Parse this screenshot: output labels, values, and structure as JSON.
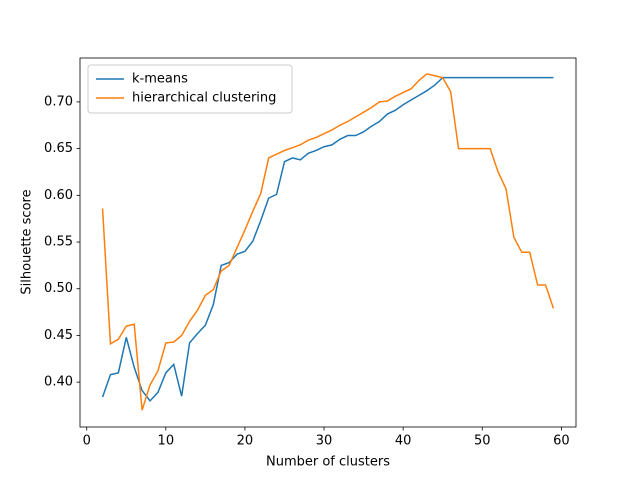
{
  "chart_data": {
    "type": "line",
    "xlabel": "Number of clusters",
    "ylabel": "Silhouette score",
    "x": [
      2,
      3,
      4,
      5,
      6,
      7,
      8,
      9,
      10,
      11,
      12,
      13,
      14,
      15,
      16,
      17,
      18,
      19,
      20,
      21,
      22,
      23,
      24,
      25,
      26,
      27,
      28,
      29,
      30,
      31,
      32,
      33,
      34,
      35,
      36,
      37,
      38,
      39,
      40,
      41,
      42,
      43,
      44,
      45,
      46,
      47,
      48,
      49,
      50,
      51,
      52,
      53,
      54,
      55,
      56,
      57,
      58,
      59
    ],
    "series": [
      {
        "name": "k-means",
        "color": "#1f77b4",
        "values": [
          0.384,
          0.408,
          0.41,
          0.448,
          0.416,
          0.391,
          0.38,
          0.389,
          0.41,
          0.419,
          0.385,
          0.442,
          0.452,
          0.461,
          0.483,
          0.525,
          0.528,
          0.537,
          0.54,
          0.551,
          0.573,
          0.597,
          0.601,
          0.636,
          0.64,
          0.638,
          0.645,
          0.648,
          0.652,
          0.654,
          0.66,
          0.664,
          0.664,
          0.668,
          0.674,
          0.679,
          0.687,
          0.691,
          0.697,
          0.702,
          0.707,
          0.712,
          0.718,
          0.726,
          0.726,
          0.726,
          0.726,
          0.726,
          0.726,
          0.726,
          0.726,
          0.726,
          0.726,
          0.726,
          0.726,
          0.726,
          0.726,
          0.726
        ]
      },
      {
        "name": "hierarchical clustering",
        "color": "#ff7f0e",
        "values": [
          0.586,
          0.441,
          0.446,
          0.46,
          0.462,
          0.37,
          0.397,
          0.412,
          0.442,
          0.443,
          0.45,
          0.465,
          0.477,
          0.493,
          0.499,
          0.519,
          0.525,
          0.544,
          0.563,
          0.583,
          0.602,
          0.64,
          0.644,
          0.648,
          0.651,
          0.654,
          0.659,
          0.662,
          0.666,
          0.67,
          0.675,
          0.679,
          0.684,
          0.689,
          0.694,
          0.7,
          0.701,
          0.706,
          0.71,
          0.714,
          0.723,
          0.73,
          0.728,
          0.726,
          0.711,
          0.65,
          0.65,
          0.65,
          0.65,
          0.65,
          0.625,
          0.607,
          0.555,
          0.539,
          0.539,
          0.504,
          0.504,
          0.479
        ]
      }
    ],
    "xlim": [
      -0.85,
      61.85
    ],
    "ylim": [
      0.352,
      0.747
    ],
    "xticks": [
      0,
      10,
      20,
      30,
      40,
      50,
      60
    ],
    "yticks": [
      {
        "value": 0.4,
        "label": "0.40"
      },
      {
        "value": 0.45,
        "label": "0.45"
      },
      {
        "value": 0.5,
        "label": "0.50"
      },
      {
        "value": 0.55,
        "label": "0.55"
      },
      {
        "value": 0.6,
        "label": "0.60"
      },
      {
        "value": 0.65,
        "label": "0.65"
      },
      {
        "value": 0.7,
        "label": "0.70"
      }
    ],
    "legend": "upper left",
    "grid": false
  }
}
